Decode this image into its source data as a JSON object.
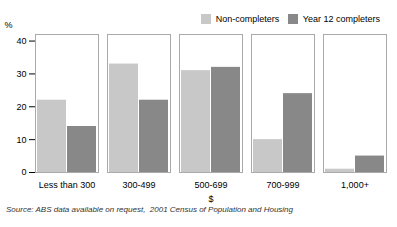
{
  "chart_data": {
    "type": "bar",
    "categories": [
      "Less than 300",
      "300-499",
      "500-699",
      "700-999",
      "1,000+"
    ],
    "series": [
      {
        "name": "Non-completers",
        "color": "#c8c8c8",
        "values": [
          22,
          33,
          31,
          10,
          1
        ]
      },
      {
        "name": "Year 12 completers",
        "color": "#888888",
        "values": [
          14,
          22,
          32,
          24,
          5
        ]
      }
    ],
    "xlabel": "$",
    "ylabel": "%",
    "ylim": [
      0,
      42
    ],
    "yticks": [
      0,
      10,
      20,
      30,
      40
    ],
    "grid": false,
    "legend": "upper right",
    "caption": "Source: ABS data available on request,  2001 Census of Population and Housing"
  }
}
